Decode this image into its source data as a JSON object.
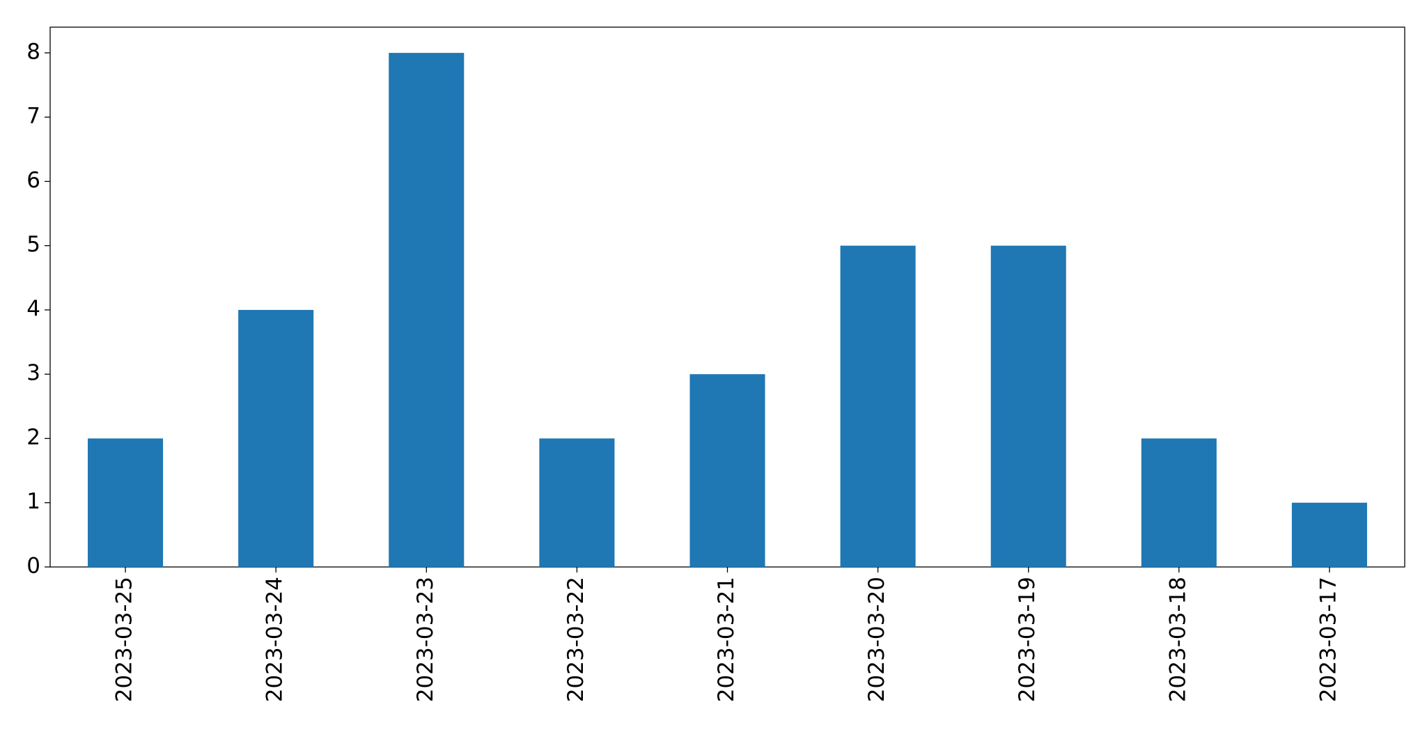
{
  "chart_data": {
    "type": "bar",
    "categories": [
      "2023-03-25",
      "2023-03-24",
      "2023-03-23",
      "2023-03-22",
      "2023-03-21",
      "2023-03-20",
      "2023-03-19",
      "2023-03-18",
      "2023-03-17"
    ],
    "values": [
      2,
      4,
      8,
      2,
      3,
      5,
      5,
      2,
      1
    ],
    "color": "#1f77b4",
    "ylim": [
      0,
      8.4
    ],
    "yticks": [
      0,
      1,
      2,
      3,
      4,
      5,
      6,
      7,
      8
    ],
    "grid": false
  }
}
